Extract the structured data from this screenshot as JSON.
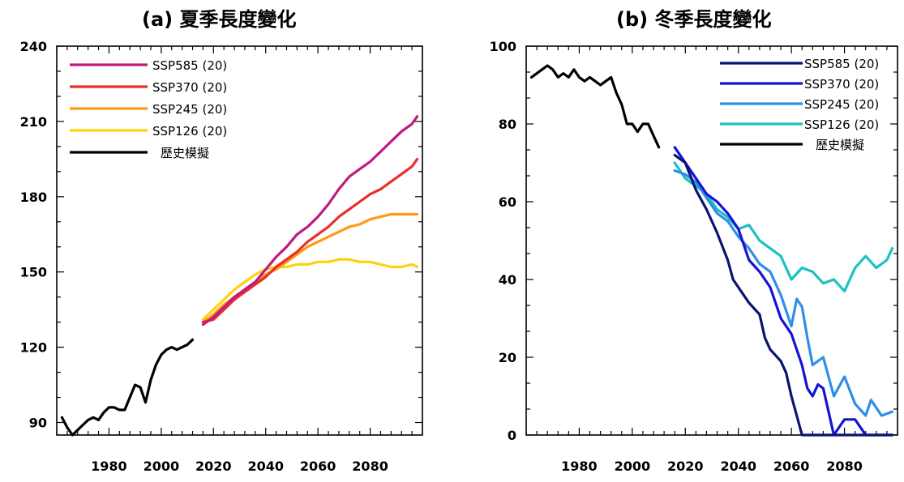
{
  "chart_data": [
    {
      "type": "line",
      "title": "(a) 夏季長度變化",
      "xlabel": "",
      "ylabel": "",
      "xlim": [
        1960,
        2100
      ],
      "ylim": [
        85,
        240
      ],
      "xticks": [
        1980,
        2000,
        2020,
        2040,
        2060,
        2080
      ],
      "yticks": [
        90,
        120,
        150,
        180,
        210,
        240
      ],
      "legend_position": "top-left",
      "series": [
        {
          "name": "SSP585 (20)",
          "color": "#c0197f",
          "x": [
            2016,
            2020,
            2024,
            2028,
            2032,
            2036,
            2040,
            2044,
            2048,
            2052,
            2056,
            2060,
            2064,
            2068,
            2072,
            2076,
            2080,
            2084,
            2088,
            2092,
            2096,
            2098
          ],
          "y": [
            129,
            132,
            136,
            140,
            143,
            146,
            151,
            156,
            160,
            165,
            168,
            172,
            177,
            183,
            188,
            191,
            194,
            198,
            202,
            206,
            209,
            212
          ]
        },
        {
          "name": "SSP370 (20)",
          "color": "#e8302a",
          "x": [
            2016,
            2020,
            2024,
            2028,
            2032,
            2036,
            2040,
            2044,
            2048,
            2052,
            2056,
            2060,
            2064,
            2068,
            2072,
            2076,
            2080,
            2084,
            2088,
            2092,
            2096,
            2098
          ],
          "y": [
            130,
            131,
            135,
            139,
            142,
            145,
            148,
            152,
            155,
            158,
            162,
            165,
            168,
            172,
            175,
            178,
            181,
            183,
            186,
            189,
            192,
            195
          ]
        },
        {
          "name": "SSP245 (20)",
          "color": "#ff9a12",
          "x": [
            2016,
            2020,
            2024,
            2028,
            2032,
            2036,
            2040,
            2044,
            2048,
            2052,
            2056,
            2060,
            2064,
            2068,
            2072,
            2076,
            2080,
            2084,
            2088,
            2092,
            2096,
            2098
          ],
          "y": [
            130,
            133,
            137,
            140,
            143,
            146,
            149,
            151,
            154,
            157,
            160,
            162,
            164,
            166,
            168,
            169,
            171,
            172,
            173,
            173,
            173,
            173
          ]
        },
        {
          "name": "SSP126 (20)",
          "color": "#ffd20f",
          "x": [
            2016,
            2020,
            2024,
            2028,
            2032,
            2036,
            2040,
            2044,
            2048,
            2052,
            2056,
            2060,
            2064,
            2068,
            2072,
            2076,
            2080,
            2084,
            2088,
            2092,
            2096,
            2098
          ],
          "y": [
            131,
            135,
            139,
            143,
            146,
            149,
            151,
            152,
            152,
            153,
            153,
            154,
            154,
            155,
            155,
            154,
            154,
            153,
            152,
            152,
            153,
            152
          ]
        },
        {
          "name": "歷史模擬",
          "color": "#000000",
          "x": [
            1962,
            1964,
            1966,
            1968,
            1970,
            1972,
            1974,
            1976,
            1978,
            1980,
            1982,
            1984,
            1986,
            1988,
            1990,
            1992,
            1994,
            1996,
            1998,
            2000,
            2002,
            2004,
            2006,
            2008,
            2010,
            2012
          ],
          "y": [
            92,
            88,
            85,
            87,
            89,
            91,
            92,
            91,
            94,
            96,
            96,
            95,
            95,
            100,
            105,
            104,
            98,
            107,
            113,
            117,
            119,
            120,
            119,
            120,
            121,
            123
          ]
        }
      ]
    },
    {
      "type": "line",
      "title": "(b) 冬季長度變化",
      "xlabel": "",
      "ylabel": "",
      "xlim": [
        1960,
        2100
      ],
      "ylim": [
        0,
        100
      ],
      "xticks": [
        1980,
        2000,
        2020,
        2040,
        2060,
        2080
      ],
      "yticks": [
        0,
        20,
        40,
        60,
        80,
        100
      ],
      "legend_position": "top-right",
      "series": [
        {
          "name": "SSP585 (20)",
          "color": "#0a1470",
          "x": [
            2016,
            2020,
            2024,
            2028,
            2032,
            2036,
            2038,
            2040,
            2044,
            2048,
            2050,
            2052,
            2056,
            2058,
            2060,
            2062,
            2064,
            2068,
            2072,
            2076,
            2080,
            2084,
            2088,
            2092,
            2096,
            2098
          ],
          "y": [
            72,
            70,
            63,
            58,
            52,
            45,
            40,
            38,
            34,
            31,
            25,
            22,
            19,
            16,
            10,
            5,
            0,
            0,
            0,
            0,
            0,
            0,
            0,
            0,
            0,
            0
          ]
        },
        {
          "name": "SSP370 (20)",
          "color": "#1414d6",
          "x": [
            2016,
            2020,
            2024,
            2028,
            2032,
            2036,
            2040,
            2044,
            2048,
            2052,
            2056,
            2060,
            2064,
            2066,
            2068,
            2070,
            2072,
            2076,
            2078,
            2080,
            2084,
            2088,
            2092,
            2096,
            2098
          ],
          "y": [
            74,
            70,
            66,
            62,
            60,
            57,
            53,
            45,
            42,
            38,
            30,
            26,
            18,
            12,
            10,
            13,
            12,
            0,
            2,
            4,
            4,
            0,
            0,
            0,
            0
          ]
        },
        {
          "name": "SSP245 (20)",
          "color": "#2d8fe6",
          "x": [
            2016,
            2020,
            2024,
            2028,
            2032,
            2036,
            2040,
            2044,
            2048,
            2052,
            2056,
            2060,
            2062,
            2064,
            2066,
            2068,
            2072,
            2076,
            2080,
            2084,
            2088,
            2090,
            2094,
            2098
          ],
          "y": [
            68,
            67,
            65,
            61,
            57,
            55,
            51,
            48,
            44,
            42,
            36,
            28,
            35,
            33,
            25,
            18,
            20,
            10,
            15,
            8,
            5,
            9,
            5,
            6
          ]
        },
        {
          "name": "SSP126 (20)",
          "color": "#1ec0c0",
          "x": [
            2016,
            2020,
            2024,
            2028,
            2032,
            2036,
            2040,
            2044,
            2048,
            2052,
            2056,
            2060,
            2064,
            2068,
            2072,
            2076,
            2080,
            2084,
            2088,
            2092,
            2096,
            2098
          ],
          "y": [
            70,
            66,
            64,
            62,
            58,
            56,
            53,
            54,
            50,
            48,
            46,
            40,
            43,
            42,
            39,
            40,
            37,
            43,
            46,
            43,
            45,
            48
          ]
        },
        {
          "name": "歷史模擬",
          "color": "#000000",
          "x": [
            1962,
            1964,
            1966,
            1968,
            1970,
            1972,
            1974,
            1976,
            1978,
            1980,
            1982,
            1984,
            1986,
            1988,
            1990,
            1992,
            1994,
            1996,
            1998,
            2000,
            2002,
            2004,
            2006,
            2008,
            2010
          ],
          "y": [
            92,
            93,
            94,
            95,
            94,
            92,
            93,
            92,
            94,
            92,
            91,
            92,
            91,
            90,
            91,
            92,
            88,
            85,
            80,
            80,
            78,
            80,
            80,
            77,
            74
          ]
        }
      ]
    }
  ]
}
